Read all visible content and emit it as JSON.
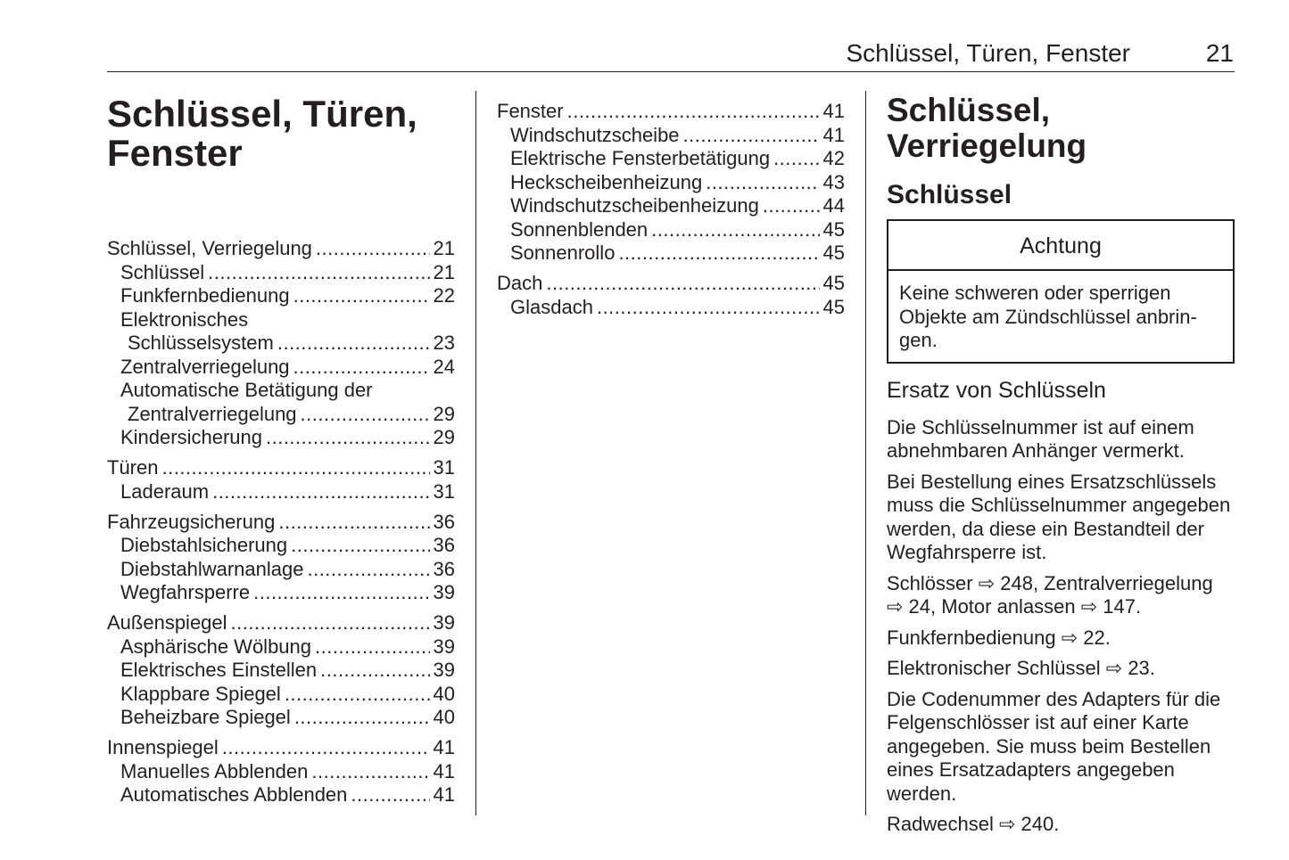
{
  "header": {
    "title": "Schlüssel, Türen, Fenster",
    "page_number": "21"
  },
  "chapter_title": [
    "Schlüssel, Türen,",
    "Fenster"
  ],
  "toc_col1": [
    {
      "title": "Schlüssel, Verriegelung",
      "page": "21",
      "items": [
        {
          "label": "Schlüssel",
          "page": "21"
        },
        {
          "label": "Funkfernbedienung",
          "page": "22"
        },
        {
          "label": "Elektronisches",
          "cont": "Schlüsselsystem",
          "page": "23"
        },
        {
          "label": "Zentralverriegelung",
          "page": "24"
        },
        {
          "label": "Automatische Betätigung der",
          "cont": "Zentralverriegelung",
          "page": "29"
        },
        {
          "label": "Kindersicherung",
          "page": "29"
        }
      ]
    },
    {
      "title": "Türen",
      "page": "31",
      "items": [
        {
          "label": "Laderaum",
          "page": "31"
        }
      ]
    },
    {
      "title": "Fahrzeugsicherung",
      "page": "36",
      "items": [
        {
          "label": "Diebstahlsicherung",
          "page": "36"
        },
        {
          "label": "Diebstahlwarnanlage",
          "page": "36"
        },
        {
          "label": "Wegfahrsperre",
          "page": "39"
        }
      ]
    },
    {
      "title": "Außenspiegel",
      "page": "39",
      "items": [
        {
          "label": "Asphärische Wölbung",
          "page": "39"
        },
        {
          "label": "Elektrisches Einstellen",
          "page": "39"
        },
        {
          "label": "Klappbare Spiegel",
          "page": "40"
        },
        {
          "label": "Beheizbare Spiegel",
          "page": "40"
        }
      ]
    },
    {
      "title": "Innenspiegel",
      "page": "41",
      "items": [
        {
          "label": "Manuelles Abblenden",
          "page": "41"
        },
        {
          "label": "Automatisches Abblenden",
          "page": "41"
        }
      ]
    }
  ],
  "toc_col2": [
    {
      "title": "Fenster",
      "page": "41",
      "items": [
        {
          "label": "Windschutzscheibe",
          "page": "41"
        },
        {
          "label": "Elektrische Fensterbetätigung",
          "page": "42"
        },
        {
          "label": "Heckscheibenheizung",
          "page": "43"
        },
        {
          "label": "Windschutzscheibenheizung",
          "page": "44"
        },
        {
          "label": "Sonnenblenden",
          "page": "45"
        },
        {
          "label": "Sonnenrollo",
          "page": "45"
        }
      ]
    },
    {
      "title": "Dach",
      "page": "45",
      "items": [
        {
          "label": "Glasdach",
          "page": "45"
        }
      ]
    }
  ],
  "section": {
    "title": "Schlüssel, Verriegelung",
    "subtitle": "Schlüssel",
    "caution": {
      "heading": "Achtung",
      "text": "Keine schweren oder sperrigen Objekte am Zündschlüssel anbrin­gen."
    },
    "subheading": "Ersatz von Schlüsseln",
    "paragraphs": [
      "Die Schlüsselnummer ist auf einem abnehmbaren Anhänger vermerkt.",
      "Bei Bestellung eines Ersatzschlüs­sels muss die Schlüsselnummer angegeben werden, da diese ein Bestandteil der Wegfahrsperre ist.",
      "Schlösser ⇨ 248, Zentralverriege­lung ⇨ 24, Motor anlassen ⇨ 147.",
      "Funkfernbedienung ⇨ 22.",
      "Elektronischer Schlüssel ⇨ 23.",
      "Die Codenummer des Adapters für die Felgenschlösser ist auf einer Karte angegeben. Sie muss beim Bestellen eines Ersatzadapters ange­geben werden.",
      "Radwechsel ⇨ 240."
    ]
  }
}
